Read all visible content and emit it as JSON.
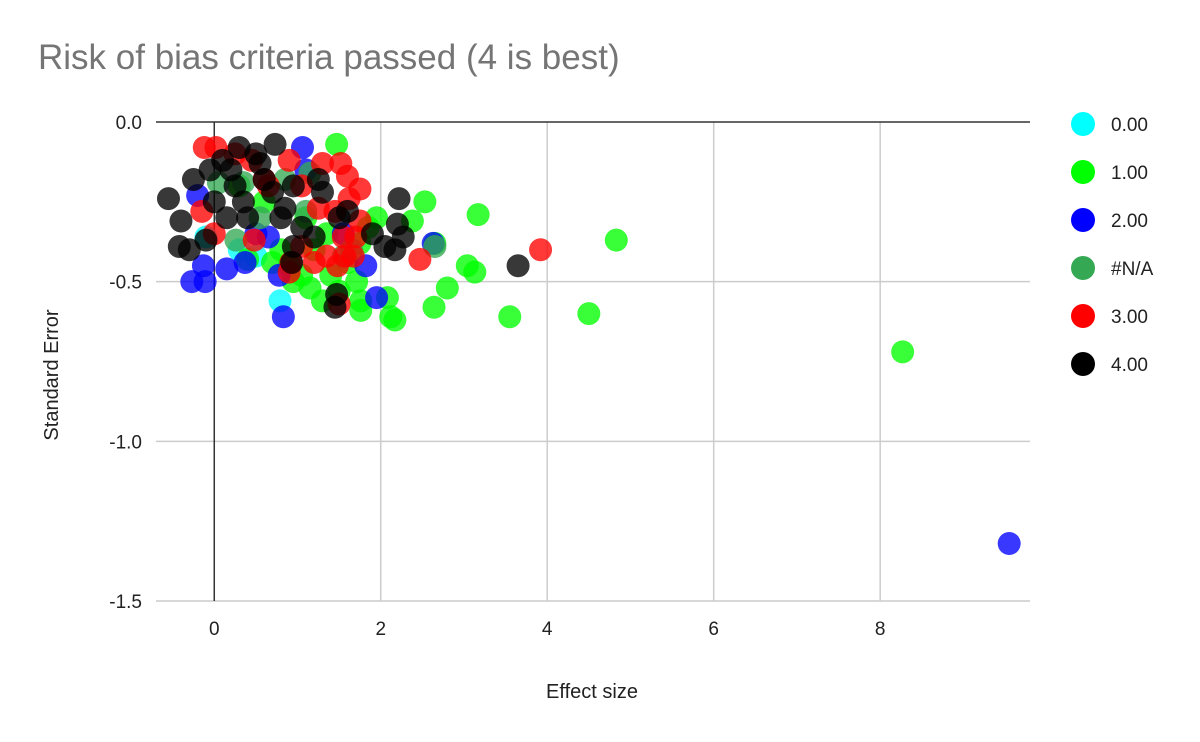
{
  "chart_data": {
    "type": "scatter",
    "title": "Risk of bias criteria passed (4 is best)",
    "xlabel": "Effect size",
    "ylabel": "Standard Error",
    "xlim": [
      -0.7,
      9.8
    ],
    "ylim": [
      -1.5,
      0.0
    ],
    "x_ticks": [
      0,
      2,
      4,
      6,
      8
    ],
    "y_ticks": [
      0.0,
      -0.5,
      -1.0,
      -1.5
    ],
    "x_tick_labels": [
      "0",
      "2",
      "4",
      "6",
      "8"
    ],
    "y_tick_labels": [
      "0.0",
      "-0.5",
      "-1.0",
      "-1.5"
    ],
    "grid": "vertical and horizontal gridlines",
    "legend_position": "right",
    "series": [
      {
        "name": "0.00",
        "color": "#00ffff",
        "points": [
          [
            0.79,
            -0.56
          ],
          [
            -0.1,
            -0.36
          ],
          [
            0.3,
            -0.4
          ],
          [
            0.5,
            -0.42
          ]
        ]
      },
      {
        "name": "1.00",
        "color": "#00ff00",
        "points": [
          [
            1.47,
            -0.07
          ],
          [
            2.53,
            -0.25
          ],
          [
            3.17,
            -0.29
          ],
          [
            4.83,
            -0.37
          ],
          [
            3.04,
            -0.45
          ],
          [
            3.13,
            -0.47
          ],
          [
            2.8,
            -0.52
          ],
          [
            2.64,
            -0.58
          ],
          [
            3.55,
            -0.61
          ],
          [
            4.5,
            -0.6
          ],
          [
            8.27,
            -0.72
          ],
          [
            2.08,
            -0.55
          ],
          [
            2.12,
            -0.61
          ],
          [
            2.17,
            -0.62
          ],
          [
            1.76,
            -0.56
          ],
          [
            1.76,
            -0.59
          ],
          [
            1.95,
            -0.3
          ],
          [
            2.38,
            -0.31
          ],
          [
            2.65,
            -0.38
          ],
          [
            1.71,
            -0.5
          ],
          [
            1.5,
            -0.53
          ],
          [
            1.3,
            -0.56
          ],
          [
            1.15,
            -0.52
          ],
          [
            1.05,
            -0.48
          ],
          [
            0.9,
            -0.45
          ],
          [
            0.7,
            -0.44
          ],
          [
            0.4,
            -0.43
          ],
          [
            0.95,
            -0.5
          ],
          [
            1.6,
            -0.44
          ],
          [
            1.2,
            -0.4
          ],
          [
            1.35,
            -0.35
          ],
          [
            0.3,
            -0.2
          ],
          [
            0.6,
            -0.25
          ],
          [
            1.75,
            -0.38
          ],
          [
            1.85,
            -0.33
          ],
          [
            1.4,
            -0.48
          ],
          [
            0.8,
            -0.4
          ],
          [
            1.1,
            -0.3
          ]
        ]
      },
      {
        "name": "2.00",
        "color": "#0000ff",
        "points": [
          [
            9.55,
            -1.32
          ],
          [
            -0.27,
            -0.5
          ],
          [
            -0.11,
            -0.5
          ],
          [
            -0.13,
            -0.45
          ],
          [
            0.15,
            -0.46
          ],
          [
            0.37,
            -0.44
          ],
          [
            0.78,
            -0.48
          ],
          [
            0.83,
            -0.61
          ],
          [
            1.95,
            -0.55
          ],
          [
            2.63,
            -0.38
          ],
          [
            1.82,
            -0.45
          ],
          [
            1.06,
            -0.08
          ],
          [
            1.1,
            -0.15
          ],
          [
            0.5,
            -0.35
          ],
          [
            0.65,
            -0.36
          ],
          [
            -0.2,
            -0.23
          ],
          [
            1.55,
            -0.35
          ]
        ]
      },
      {
        "name": "#N/A",
        "color": "#34a853",
        "points": [
          [
            0.05,
            -0.19
          ],
          [
            0.35,
            -0.19
          ],
          [
            0.85,
            -0.18
          ],
          [
            1.15,
            -0.16
          ],
          [
            1.55,
            -0.42
          ],
          [
            1.65,
            -0.4
          ],
          [
            0.26,
            -0.37
          ],
          [
            2.65,
            -0.39
          ],
          [
            0.55,
            -0.3
          ],
          [
            1.1,
            -0.28
          ]
        ]
      },
      {
        "name": "3.00",
        "color": "#ff0000",
        "points": [
          [
            -0.12,
            -0.08
          ],
          [
            0.02,
            -0.08
          ],
          [
            0.25,
            -0.1
          ],
          [
            0.45,
            -0.12
          ],
          [
            0.9,
            -0.12
          ],
          [
            1.3,
            -0.13
          ],
          [
            1.52,
            -0.13
          ],
          [
            1.6,
            -0.17
          ],
          [
            1.75,
            -0.21
          ],
          [
            1.62,
            -0.24
          ],
          [
            0.6,
            -0.18
          ],
          [
            0.65,
            -0.2
          ],
          [
            1.05,
            -0.2
          ],
          [
            1.25,
            -0.27
          ],
          [
            1.45,
            -0.28
          ],
          [
            1.55,
            -0.36
          ],
          [
            1.7,
            -0.36
          ],
          [
            1.57,
            -0.42
          ],
          [
            1.67,
            -0.42
          ],
          [
            1.35,
            -0.42
          ],
          [
            1.2,
            -0.44
          ],
          [
            0.92,
            -0.44
          ],
          [
            0.9,
            -0.47
          ],
          [
            1.48,
            -0.45
          ],
          [
            2.47,
            -0.43
          ],
          [
            3.92,
            -0.4
          ],
          [
            1.75,
            -0.31
          ],
          [
            0.48,
            -0.37
          ],
          [
            1.5,
            -0.57
          ],
          [
            -0.15,
            -0.28
          ],
          [
            1.05,
            -0.39
          ],
          [
            0.0,
            -0.35
          ]
        ]
      },
      {
        "name": "4.00",
        "color": "#000000",
        "points": [
          [
            -0.55,
            -0.24
          ],
          [
            -0.4,
            -0.31
          ],
          [
            -0.42,
            -0.39
          ],
          [
            -0.3,
            -0.4
          ],
          [
            -0.25,
            -0.18
          ],
          [
            -0.1,
            -0.37
          ],
          [
            0.1,
            -0.12
          ],
          [
            0.3,
            -0.08
          ],
          [
            0.5,
            -0.1
          ],
          [
            0.73,
            -0.07
          ],
          [
            0.95,
            -0.2
          ],
          [
            1.25,
            -0.18
          ],
          [
            1.6,
            -0.28
          ],
          [
            2.22,
            -0.24
          ],
          [
            2.2,
            -0.32
          ],
          [
            1.9,
            -0.35
          ],
          [
            2.05,
            -0.39
          ],
          [
            2.17,
            -0.4
          ],
          [
            2.27,
            -0.36
          ],
          [
            3.65,
            -0.45
          ],
          [
            1.47,
            -0.54
          ],
          [
            1.45,
            -0.58
          ],
          [
            0.93,
            -0.44
          ],
          [
            0.95,
            -0.39
          ],
          [
            1.2,
            -0.36
          ],
          [
            1.05,
            -0.33
          ],
          [
            0.8,
            -0.3
          ],
          [
            0.7,
            -0.22
          ],
          [
            0.4,
            -0.3
          ],
          [
            0.2,
            -0.15
          ],
          [
            0.0,
            -0.25
          ],
          [
            -0.05,
            -0.15
          ],
          [
            0.6,
            -0.18
          ],
          [
            0.35,
            -0.25
          ],
          [
            0.85,
            -0.27
          ],
          [
            1.3,
            -0.22
          ],
          [
            1.5,
            -0.3
          ],
          [
            0.15,
            -0.3
          ],
          [
            0.55,
            -0.13
          ],
          [
            0.25,
            -0.2
          ]
        ]
      }
    ],
    "legend": [
      {
        "label": "0.00",
        "color": "#00ffff"
      },
      {
        "label": "1.00",
        "color": "#00ff00"
      },
      {
        "label": "2.00",
        "color": "#0000ff"
      },
      {
        "label": "#N/A",
        "color": "#34a853"
      },
      {
        "label": "3.00",
        "color": "#ff0000"
      },
      {
        "label": "4.00",
        "color": "#000000"
      }
    ]
  }
}
